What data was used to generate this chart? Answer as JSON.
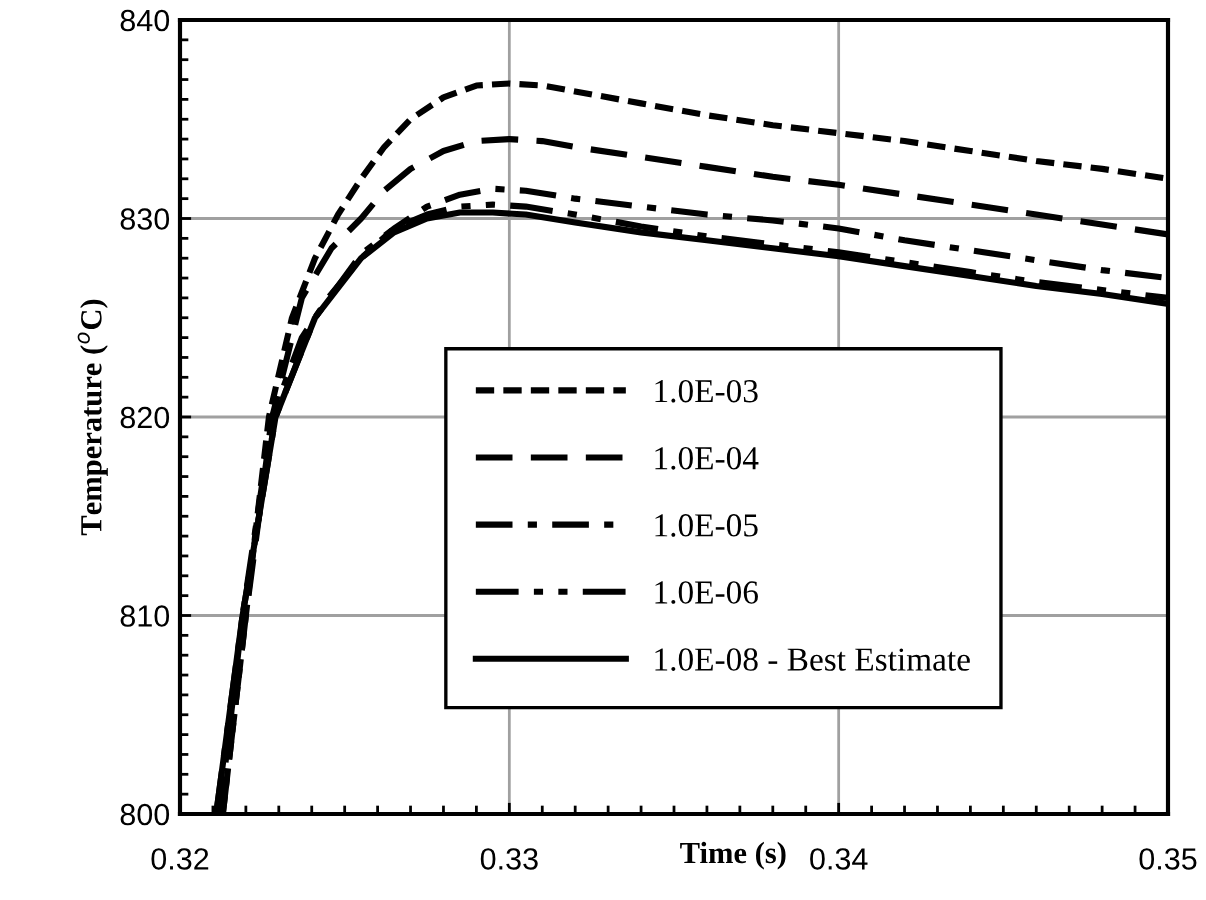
{
  "chart_data": {
    "type": "line",
    "xlabel": "Time (s)",
    "ylabel": "Temperature ($^{o}$C)",
    "xlim": [
      0.32,
      0.35
    ],
    "xticks": [
      0.32,
      0.33,
      0.34,
      0.35
    ],
    "ylim": [
      800,
      840
    ],
    "yticks": [
      800,
      810,
      820,
      830,
      840
    ],
    "grid": true,
    "legend": "center",
    "marker": "none",
    "series": [
      {
        "name": "1.0E-03",
        "color": "#000000",
        "line_style": "dotted",
        "x": [
          0.3213,
          0.322,
          0.3227,
          0.3234,
          0.3241,
          0.3248,
          0.3255,
          0.3262,
          0.327,
          0.328,
          0.329,
          0.33,
          0.331,
          0.332,
          0.334,
          0.336,
          0.338,
          0.34,
          0.342,
          0.344,
          0.346,
          0.348,
          0.35
        ],
        "values": [
          800,
          810,
          820,
          825,
          828,
          830.2,
          832,
          833.6,
          835,
          836.1,
          836.7,
          836.8,
          836.7,
          836.4,
          835.8,
          835.2,
          834.7,
          834.3,
          833.9,
          833.4,
          832.9,
          832.5,
          832.0
        ]
      },
      {
        "name": "1.0E-04",
        "color": "#000000",
        "line_style": "dashed",
        "x": [
          0.3213,
          0.322,
          0.3228,
          0.3237,
          0.3246,
          0.3255,
          0.3262,
          0.327,
          0.328,
          0.329,
          0.33,
          0.331,
          0.332,
          0.334,
          0.336,
          0.338,
          0.34,
          0.342,
          0.344,
          0.346,
          0.348,
          0.35
        ],
        "values": [
          800,
          810,
          820,
          826,
          828.5,
          830,
          831.4,
          832.5,
          833.4,
          833.9,
          834.0,
          833.9,
          833.6,
          833.1,
          832.6,
          832.1,
          831.7,
          831.2,
          830.7,
          830.2,
          829.7,
          829.2
        ]
      },
      {
        "name": "1.0E-05",
        "color": "#000000",
        "line_style": "dashdot",
        "x": [
          0.3212,
          0.3219,
          0.3228,
          0.3237,
          0.3245,
          0.3255,
          0.3265,
          0.3275,
          0.3285,
          0.3295,
          0.3305,
          0.332,
          0.334,
          0.336,
          0.338,
          0.34,
          0.342,
          0.344,
          0.346,
          0.348,
          0.35
        ],
        "values": [
          800,
          810,
          820,
          824,
          826,
          828,
          829.5,
          830.6,
          831.2,
          831.5,
          831.4,
          831.0,
          830.6,
          830.2,
          829.9,
          829.5,
          828.9,
          828.4,
          827.9,
          827.4,
          827.0
        ]
      },
      {
        "name": "1.0E-06",
        "color": "#000000",
        "line_style": "dashdotdot",
        "x": [
          0.3211,
          0.3219,
          0.3229,
          0.3241,
          0.3255,
          0.3265,
          0.3275,
          0.3285,
          0.3295,
          0.3305,
          0.332,
          0.334,
          0.336,
          0.338,
          0.34,
          0.342,
          0.344,
          0.346,
          0.348,
          0.35
        ],
        "values": [
          800,
          810,
          820,
          825,
          828.2,
          829.5,
          830.2,
          830.6,
          830.7,
          830.6,
          830.2,
          829.6,
          829.1,
          828.7,
          828.3,
          827.8,
          827.3,
          826.8,
          826.4,
          826.0
        ]
      },
      {
        "name": "1.0E-08 - Best Estimate",
        "color": "#000000",
        "line_style": "solid",
        "x": [
          0.3211,
          0.3219,
          0.3229,
          0.3241,
          0.3255,
          0.3265,
          0.3275,
          0.3285,
          0.3295,
          0.3305,
          0.332,
          0.334,
          0.336,
          0.338,
          0.34,
          0.342,
          0.344,
          0.346,
          0.348,
          0.35
        ],
        "values": [
          800,
          810,
          820,
          825,
          828,
          829.3,
          830.0,
          830.3,
          830.3,
          830.2,
          829.8,
          829.3,
          828.9,
          828.5,
          828.1,
          827.6,
          827.1,
          826.6,
          826.2,
          825.7
        ]
      }
    ]
  }
}
